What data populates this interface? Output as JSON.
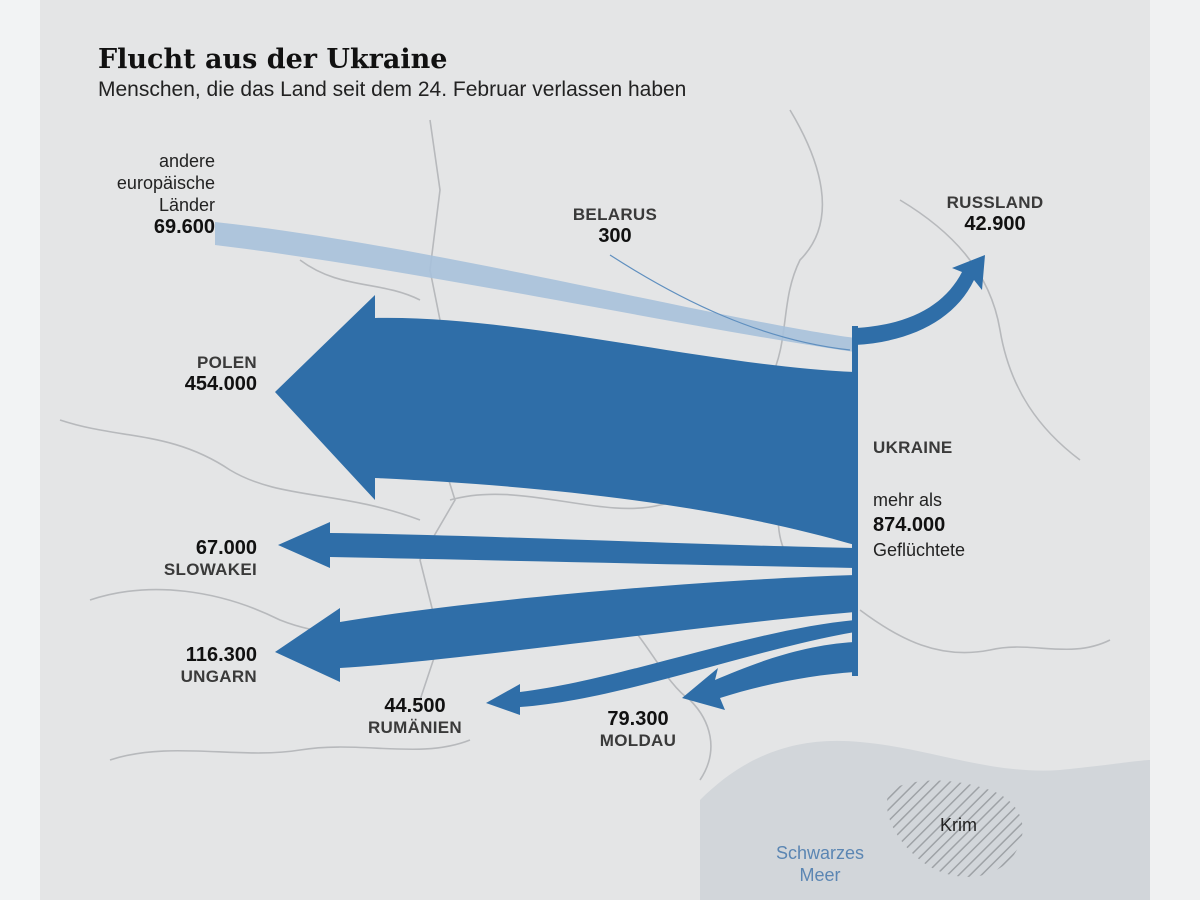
{
  "header": {
    "title": "Flucht aus der Ukraine",
    "subtitle": "Menschen, die das Land seit dem 24. Februar verlassen haben"
  },
  "colors": {
    "flow_main": "#2f6ea8",
    "flow_light": "#9dbad6",
    "land": "#e4e5e6",
    "border": "#b9bbbd",
    "sea": "#cfd3d8"
  },
  "origin": {
    "name": "UKRAINE",
    "prefix": "mehr als",
    "value": "874.000",
    "suffix": "Geflüchtete"
  },
  "destinations": [
    {
      "key": "europe",
      "name_lines": [
        "andere",
        "europäische",
        "Länder"
      ],
      "value": "69.600",
      "people": 69600
    },
    {
      "key": "belarus",
      "name": "BELARUS",
      "value": "300",
      "people": 300
    },
    {
      "key": "russia",
      "name": "RUSSLAND",
      "value": "42.900",
      "people": 42900
    },
    {
      "key": "poland",
      "name": "POLEN",
      "value": "454.000",
      "people": 454000
    },
    {
      "key": "slovakia",
      "name": "SLOWAKEI",
      "value": "67.000",
      "people": 67000
    },
    {
      "key": "hungary",
      "name": "UNGARN",
      "value": "116.300",
      "people": 116300
    },
    {
      "key": "romania",
      "name": "RUMÄNIEN",
      "value": "44.500",
      "people": 44500
    },
    {
      "key": "moldova",
      "name": "MOLDAU",
      "value": "79.300",
      "people": 79300
    }
  ],
  "places": {
    "crimea": "Krim",
    "sea_line1": "Schwarzes",
    "sea_line2": "Meer"
  }
}
